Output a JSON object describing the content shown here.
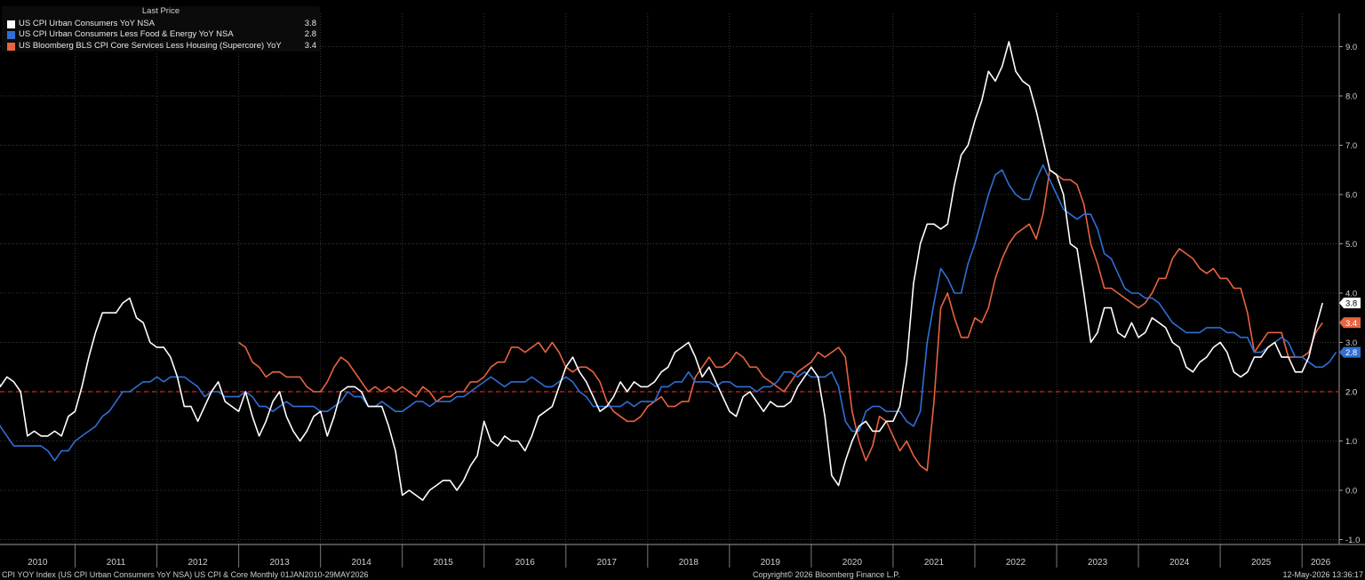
{
  "legend": {
    "header": "Last Price",
    "items": [
      {
        "name": "US CPI Urban Consumers YoY NSA",
        "value": "3.8",
        "color": "#ffffff"
      },
      {
        "name": "US CPI Urban Consumers Less Food & Energy YoY NSA",
        "value": "2.8",
        "color": "#2f6fd6"
      },
      {
        "name": "US Bloomberg BLS CPI Core Services Less Housing (Supercore) YoY",
        "value": "3.4",
        "color": "#e8633f"
      }
    ]
  },
  "footer": {
    "left": "CPI YOY Index (US CPI Urban Consumers YoY NSA) US CPI & Core Monthly 01JAN2010-29MAY2026",
    "center": "Copyright© 2026 Bloomberg Finance L.P.",
    "right": "12-May-2026 13:36:17"
  },
  "chart_data": {
    "type": "line",
    "x_range": [
      "2010-01",
      "2026-05"
    ],
    "x_ticks": [
      "2010",
      "2011",
      "2012",
      "2013",
      "2014",
      "2015",
      "2016",
      "2017",
      "2018",
      "2019",
      "2020",
      "2021",
      "2022",
      "2023",
      "2024",
      "2025",
      "2026"
    ],
    "y_ticks": [
      "-1.0",
      "0.0",
      "1.0",
      "2.0",
      "3.0",
      "4.0",
      "5.0",
      "6.0",
      "7.0",
      "8.0",
      "9.0"
    ],
    "ylim": [
      -1.2,
      9.8
    ],
    "y_axis_position": "right",
    "grid": true,
    "legend_position": "top-left",
    "reference_line": {
      "value": 2.0,
      "label": "2.0",
      "color": "#e02020",
      "style": "dashed"
    },
    "series": [
      {
        "name": "US CPI Urban Consumers YoY NSA",
        "color": "#ffffff",
        "last_label": "3.8",
        "start": "2010-01",
        "values": [
          2.6,
          2.1,
          2.3,
          2.2,
          2.0,
          1.1,
          1.2,
          1.1,
          1.1,
          1.2,
          1.1,
          1.5,
          1.6,
          2.1,
          2.7,
          3.2,
          3.6,
          3.6,
          3.6,
          3.8,
          3.9,
          3.5,
          3.4,
          3.0,
          2.9,
          2.9,
          2.7,
          2.3,
          1.7,
          1.7,
          1.4,
          1.7,
          2.0,
          2.2,
          1.8,
          1.7,
          1.6,
          2.0,
          1.5,
          1.1,
          1.4,
          1.8,
          2.0,
          1.5,
          1.2,
          1.0,
          1.2,
          1.5,
          1.6,
          1.1,
          1.5,
          2.0,
          2.1,
          2.1,
          2.0,
          1.7,
          1.7,
          1.7,
          1.3,
          0.8,
          -0.1,
          0.0,
          -0.1,
          -0.2,
          0.0,
          0.1,
          0.2,
          0.2,
          0.0,
          0.2,
          0.5,
          0.7,
          1.4,
          1.0,
          0.9,
          1.1,
          1.0,
          1.0,
          0.8,
          1.1,
          1.5,
          1.6,
          1.7,
          2.1,
          2.5,
          2.7,
          2.4,
          2.2,
          1.9,
          1.6,
          1.7,
          1.9,
          2.2,
          2.0,
          2.2,
          2.1,
          2.1,
          2.2,
          2.4,
          2.5,
          2.8,
          2.9,
          3.0,
          2.7,
          2.3,
          2.5,
          2.2,
          1.9,
          1.6,
          1.5,
          1.9,
          2.0,
          1.8,
          1.6,
          1.8,
          1.7,
          1.7,
          1.8,
          2.1,
          2.3,
          2.5,
          2.3,
          1.5,
          0.3,
          0.1,
          0.6,
          1.0,
          1.3,
          1.4,
          1.2,
          1.2,
          1.4,
          1.4,
          1.7,
          2.6,
          4.2,
          5.0,
          5.4,
          5.4,
          5.3,
          5.4,
          6.2,
          6.8,
          7.0,
          7.5,
          7.9,
          8.5,
          8.3,
          8.6,
          9.1,
          8.5,
          8.3,
          8.2,
          7.7,
          7.1,
          6.5,
          6.4,
          6.0,
          5.0,
          4.9,
          4.0,
          3.0,
          3.2,
          3.7,
          3.7,
          3.2,
          3.1,
          3.4,
          3.1,
          3.2,
          3.5,
          3.4,
          3.3,
          3.0,
          2.9,
          2.5,
          2.4,
          2.6,
          2.7,
          2.9,
          3.0,
          2.8,
          2.4,
          2.3,
          2.4,
          2.7,
          2.7,
          2.9,
          3.0,
          2.7,
          2.7,
          2.4,
          2.4,
          2.7,
          3.3,
          3.8
        ]
      },
      {
        "name": "US CPI Urban Consumers Less Food & Energy YoY NSA",
        "color": "#2f6fd6",
        "last_label": "2.8",
        "start": "2010-01",
        "values": [
          1.6,
          1.3,
          1.1,
          0.9,
          0.9,
          0.9,
          0.9,
          0.9,
          0.8,
          0.6,
          0.8,
          0.8,
          1.0,
          1.1,
          1.2,
          1.3,
          1.5,
          1.6,
          1.8,
          2.0,
          2.0,
          2.1,
          2.2,
          2.2,
          2.3,
          2.2,
          2.3,
          2.3,
          2.3,
          2.2,
          2.1,
          1.9,
          2.0,
          2.0,
          1.9,
          1.9,
          1.9,
          2.0,
          1.9,
          1.7,
          1.7,
          1.6,
          1.7,
          1.8,
          1.7,
          1.7,
          1.7,
          1.7,
          1.6,
          1.6,
          1.7,
          1.8,
          2.0,
          1.9,
          1.9,
          1.7,
          1.7,
          1.8,
          1.7,
          1.6,
          1.6,
          1.7,
          1.8,
          1.8,
          1.7,
          1.8,
          1.8,
          1.8,
          1.9,
          1.9,
          2.0,
          2.1,
          2.2,
          2.3,
          2.2,
          2.1,
          2.2,
          2.2,
          2.2,
          2.3,
          2.2,
          2.1,
          2.1,
          2.2,
          2.3,
          2.2,
          2.0,
          1.9,
          1.7,
          1.7,
          1.7,
          1.7,
          1.7,
          1.8,
          1.7,
          1.8,
          1.8,
          1.8,
          2.1,
          2.1,
          2.2,
          2.2,
          2.4,
          2.2,
          2.2,
          2.2,
          2.1,
          2.2,
          2.2,
          2.1,
          2.1,
          2.1,
          2.0,
          2.1,
          2.1,
          2.2,
          2.4,
          2.4,
          2.3,
          2.4,
          2.3,
          2.3,
          2.3,
          2.4,
          2.1,
          1.4,
          1.2,
          1.2,
          1.6,
          1.7,
          1.7,
          1.6,
          1.6,
          1.6,
          1.4,
          1.3,
          1.6,
          3.0,
          3.8,
          4.5,
          4.3,
          4.0,
          4.0,
          4.6,
          5.0,
          5.5,
          6.0,
          6.4,
          6.5,
          6.2,
          6.0,
          5.9,
          5.9,
          6.3,
          6.6,
          6.3,
          6.0,
          5.7,
          5.6,
          5.5,
          5.6,
          5.6,
          5.3,
          4.8,
          4.7,
          4.4,
          4.1,
          4.0,
          4.0,
          3.9,
          3.9,
          3.8,
          3.6,
          3.4,
          3.3,
          3.2,
          3.2,
          3.2,
          3.3,
          3.3,
          3.3,
          3.2,
          3.2,
          3.1,
          3.1,
          2.8,
          2.8,
          2.9,
          3.0,
          3.1,
          3.0,
          2.7,
          2.7,
          2.6,
          2.5,
          2.5,
          2.6,
          2.8
        ]
      },
      {
        "name": "US Bloomberg BLS CPI Core Services Less Housing (Supercore) YoY",
        "color": "#e8633f",
        "last_label": "3.4",
        "start": "2013-01",
        "values": [
          3.0,
          2.9,
          2.6,
          2.5,
          2.3,
          2.4,
          2.4,
          2.3,
          2.3,
          2.3,
          2.1,
          2.0,
          2.0,
          2.2,
          2.5,
          2.7,
          2.6,
          2.4,
          2.2,
          2.0,
          2.1,
          2.0,
          2.1,
          2.0,
          2.1,
          2.0,
          1.9,
          2.1,
          2.0,
          1.8,
          1.9,
          1.9,
          2.0,
          2.0,
          2.2,
          2.2,
          2.3,
          2.5,
          2.6,
          2.6,
          2.9,
          2.9,
          2.8,
          2.9,
          3.0,
          2.8,
          3.0,
          2.8,
          2.5,
          2.4,
          2.5,
          2.5,
          2.4,
          2.2,
          1.8,
          1.6,
          1.5,
          1.4,
          1.4,
          1.5,
          1.7,
          1.8,
          1.9,
          1.7,
          1.7,
          1.8,
          1.8,
          2.3,
          2.5,
          2.7,
          2.5,
          2.5,
          2.6,
          2.8,
          2.7,
          2.5,
          2.5,
          2.3,
          2.2,
          2.1,
          2.0,
          2.2,
          2.4,
          2.5,
          2.6,
          2.8,
          2.7,
          2.8,
          2.9,
          2.7,
          1.6,
          1.0,
          0.6,
          0.9,
          1.5,
          1.4,
          1.1,
          0.8,
          1.0,
          0.7,
          0.5,
          0.4,
          1.8,
          3.7,
          4.0,
          3.5,
          3.1,
          3.1,
          3.5,
          3.4,
          3.7,
          4.3,
          4.7,
          5.0,
          5.2,
          5.3,
          5.4,
          5.1,
          5.6,
          6.5,
          6.4,
          6.3,
          6.3,
          6.2,
          5.8,
          5.0,
          4.6,
          4.1,
          4.1,
          4.0,
          3.9,
          3.8,
          3.7,
          3.8,
          4.0,
          4.3,
          4.3,
          4.7,
          4.9,
          4.8,
          4.7,
          4.5,
          4.4,
          4.5,
          4.3,
          4.3,
          4.1,
          4.1,
          3.6,
          2.8,
          3.0,
          3.2,
          3.2,
          3.2,
          2.7,
          2.7,
          2.7,
          2.8,
          3.2,
          3.4
        ]
      }
    ]
  }
}
